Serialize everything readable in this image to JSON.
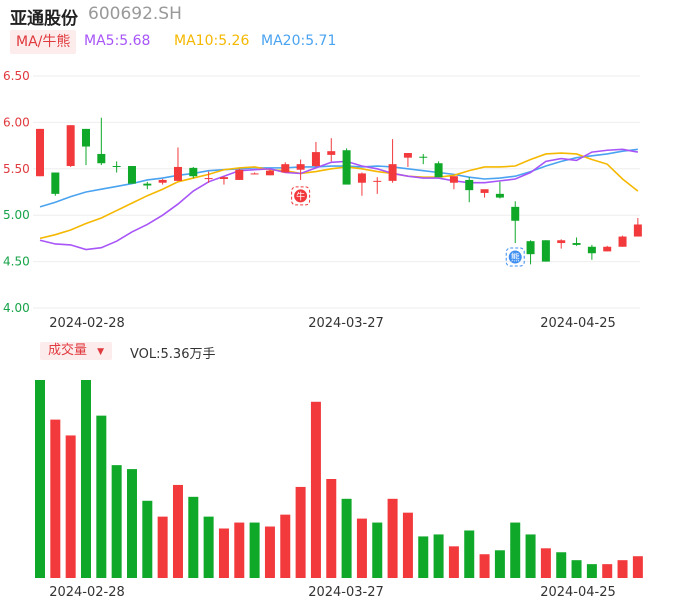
{
  "header": {
    "name": "亚通股份",
    "code": "600692.SH",
    "ma_tag": "MA/牛熊",
    "ma5": "MA5:5.68",
    "ma10": "MA10:5.26",
    "ma20": "MA20:5.71"
  },
  "volume_header": {
    "tag": "成交量",
    "vol": "VOL:5.36万手"
  },
  "colors": {
    "up": "#f23a3d",
    "down": "#0fa829",
    "ma5": "#a855f7",
    "ma10": "#f5b800",
    "ma20": "#4aa3f0",
    "grid": "#eeeeee"
  },
  "chart_data": [
    {
      "type": "candlestick",
      "title": "",
      "y_ticks": [
        "6.50",
        "6.00",
        "5.50",
        "5.00",
        "4.50",
        "4.00"
      ],
      "ylim": [
        4.0,
        6.5
      ],
      "x_ticks": [
        "2024-02-28",
        "2024-03-27",
        "2024-04-25"
      ],
      "grid": true,
      "ohlc": [
        [
          5.42,
          5.93,
          5.42,
          5.93
        ],
        [
          5.46,
          5.23,
          5.21,
          5.46
        ],
        [
          5.53,
          5.97,
          5.52,
          5.97
        ],
        [
          5.93,
          5.74,
          5.54,
          5.93
        ],
        [
          5.66,
          5.56,
          5.54,
          6.05
        ],
        [
          5.53,
          5.52,
          5.46,
          5.58
        ],
        [
          5.53,
          5.34,
          5.34,
          5.53
        ],
        [
          5.34,
          5.32,
          5.28,
          5.36
        ],
        [
          5.35,
          5.38,
          5.33,
          5.39
        ],
        [
          5.37,
          5.52,
          5.37,
          5.73
        ],
        [
          5.51,
          5.42,
          5.4,
          5.52
        ],
        [
          5.4,
          5.4,
          5.35,
          5.47
        ],
        [
          5.39,
          5.41,
          5.33,
          5.42
        ],
        [
          5.38,
          5.49,
          5.38,
          5.5
        ],
        [
          5.45,
          5.45,
          5.44,
          5.46
        ],
        [
          5.43,
          5.48,
          5.43,
          5.49
        ],
        [
          5.46,
          5.55,
          5.46,
          5.57
        ],
        [
          5.49,
          5.55,
          5.38,
          5.6
        ],
        [
          5.53,
          5.68,
          5.52,
          5.79
        ],
        [
          5.65,
          5.69,
          5.58,
          5.83
        ],
        [
          5.7,
          5.33,
          5.34,
          5.72
        ],
        [
          5.35,
          5.45,
          5.21,
          5.46
        ],
        [
          5.37,
          5.37,
          5.23,
          5.41
        ],
        [
          5.37,
          5.55,
          5.35,
          5.82
        ],
        [
          5.62,
          5.67,
          5.52,
          5.67
        ],
        [
          5.63,
          5.62,
          5.55,
          5.66
        ],
        [
          5.56,
          5.41,
          5.42,
          5.58
        ],
        [
          5.35,
          5.42,
          5.28,
          5.42
        ],
        [
          5.38,
          5.27,
          5.14,
          5.41
        ],
        [
          5.24,
          5.28,
          5.19,
          5.26
        ],
        [
          5.23,
          5.19,
          5.18,
          5.36
        ],
        [
          5.09,
          4.94,
          4.7,
          5.15
        ],
        [
          4.72,
          4.58,
          4.47,
          4.73
        ],
        [
          4.73,
          4.5,
          4.5,
          4.73
        ],
        [
          4.7,
          4.73,
          4.64,
          4.74
        ],
        [
          4.7,
          4.68,
          4.67,
          4.76
        ],
        [
          4.66,
          4.59,
          4.52,
          4.68
        ],
        [
          4.61,
          4.66,
          4.61,
          4.67
        ],
        [
          4.66,
          4.77,
          4.66,
          4.78
        ],
        [
          4.77,
          4.9,
          4.77,
          4.97
        ]
      ],
      "ma5_values": [
        4.73,
        4.69,
        4.68,
        4.63,
        4.65,
        4.72,
        4.82,
        4.9,
        5.0,
        5.12,
        5.26,
        5.36,
        5.42,
        5.48,
        5.49,
        5.5,
        5.46,
        5.45,
        5.51,
        5.57,
        5.58,
        5.53,
        5.5,
        5.45,
        5.42,
        5.4,
        5.4,
        5.37,
        5.35,
        5.35,
        5.37,
        5.39,
        5.46,
        5.58,
        5.61,
        5.59,
        5.68,
        5.7,
        5.71,
        5.68
      ],
      "ma10_values": [
        4.75,
        4.79,
        4.84,
        4.91,
        4.97,
        5.05,
        5.13,
        5.21,
        5.28,
        5.36,
        5.4,
        5.44,
        5.49,
        5.51,
        5.52,
        5.49,
        5.48,
        5.45,
        5.47,
        5.5,
        5.52,
        5.5,
        5.47,
        5.45,
        5.42,
        5.41,
        5.41,
        5.43,
        5.48,
        5.52,
        5.52,
        5.53,
        5.6,
        5.66,
        5.67,
        5.66,
        5.6,
        5.55,
        5.39,
        5.26
      ],
      "ma20_values": [
        5.09,
        5.14,
        5.2,
        5.25,
        5.28,
        5.31,
        5.34,
        5.38,
        5.4,
        5.43,
        5.45,
        5.48,
        5.49,
        5.5,
        5.51,
        5.51,
        5.51,
        5.52,
        5.52,
        5.53,
        5.53,
        5.52,
        5.53,
        5.52,
        5.5,
        5.48,
        5.46,
        5.44,
        5.41,
        5.39,
        5.4,
        5.42,
        5.47,
        5.53,
        5.58,
        5.62,
        5.64,
        5.66,
        5.69,
        5.71
      ],
      "markers": [
        {
          "index": 17,
          "text": "牛",
          "color": "#f23a3d"
        },
        {
          "index": 31,
          "text": "熊",
          "color": "#3d8ef0"
        }
      ]
    },
    {
      "type": "bar",
      "title": "",
      "series_name": "成交量",
      "x_ticks": [
        "2024-02-28",
        "2024-03-27",
        "2024-04-25"
      ],
      "ymax": 100,
      "values": [
        100,
        80,
        72,
        100,
        82,
        57,
        55,
        39,
        31,
        47,
        41,
        31,
        25,
        28,
        28,
        26,
        32,
        46,
        89,
        50,
        40,
        30,
        28,
        40,
        33,
        21,
        22,
        16,
        24,
        12,
        14,
        28,
        22,
        15,
        13,
        9,
        7,
        7,
        9,
        11
      ],
      "up": [
        false,
        true,
        true,
        false,
        false,
        false,
        false,
        false,
        true,
        true,
        false,
        false,
        true,
        true,
        false,
        true,
        true,
        true,
        true,
        true,
        false,
        true,
        false,
        true,
        true,
        false,
        false,
        true,
        false,
        true,
        false,
        false,
        false,
        true,
        false,
        false,
        false,
        true,
        true,
        true
      ]
    }
  ]
}
